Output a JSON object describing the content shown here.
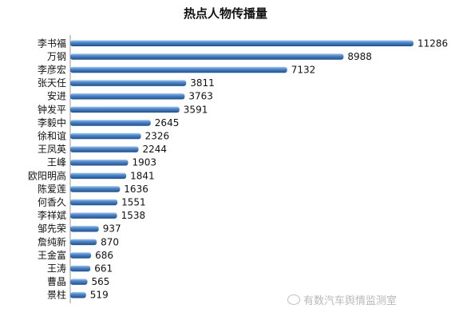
{
  "chart_data": {
    "type": "bar",
    "orientation": "horizontal",
    "title": "热点人物传播量",
    "categories": [
      "李书福",
      "万钢",
      "李彦宏",
      "张天任",
      "安进",
      "钟发平",
      "李毅中",
      "徐和谊",
      "王凤英",
      "王峰",
      "欧阳明高",
      "陈爱莲",
      "何香久",
      "李祥斌",
      "邹先荣",
      "詹纯新",
      "王金富",
      "王涛",
      "曹晶",
      "景柱"
    ],
    "values": [
      11286,
      8988,
      7132,
      3811,
      3763,
      3591,
      2645,
      2326,
      2244,
      1903,
      1841,
      1636,
      1551,
      1538,
      937,
      870,
      686,
      661,
      565,
      519
    ],
    "xlim": [
      0,
      11286
    ],
    "grid": false,
    "legend": "none",
    "bar_color": "#2f6bb3"
  },
  "watermark": {
    "icon": "wechat-icon",
    "text": "有数汽车舆情监测室"
  }
}
